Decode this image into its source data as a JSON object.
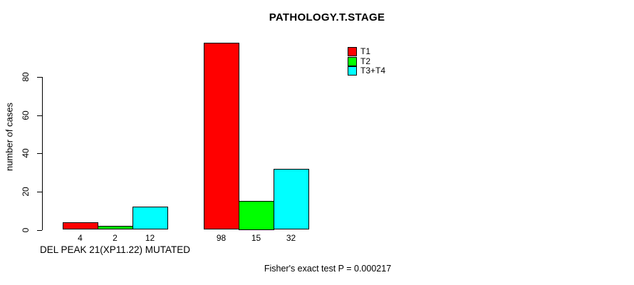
{
  "chart_data": {
    "type": "bar",
    "title": "PATHOLOGY.T.STAGE",
    "ylabel": "number of cases",
    "xlabel": "",
    "yticks": [
      0,
      20,
      40,
      60,
      80
    ],
    "ylim": [
      0,
      98
    ],
    "grid": false,
    "background": "#FFFFFF",
    "legend_position": "top-right",
    "series": [
      {
        "name": "T1",
        "color": "#FF0000"
      },
      {
        "name": "T2",
        "color": "#00FF00"
      },
      {
        "name": "T3+T4",
        "color": "#00FFFF"
      }
    ],
    "groups": [
      {
        "label": "DEL PEAK 21(XP11.22) MUTATED",
        "values": [
          4,
          2,
          12
        ]
      },
      {
        "label": "",
        "values": [
          98,
          15,
          32
        ]
      }
    ],
    "bar_value_labels": [
      [
        "4",
        "2",
        "12"
      ],
      [
        "98",
        "15",
        "32"
      ]
    ],
    "annotation": "Fisher's exact test P = 0.000217"
  }
}
